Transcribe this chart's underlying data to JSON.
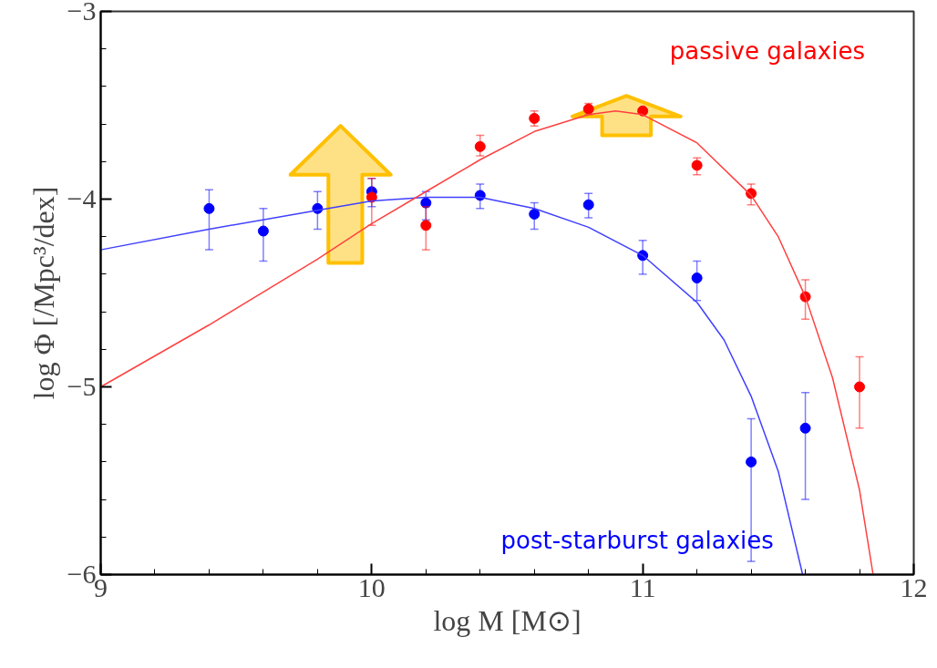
{
  "chart_data": {
    "type": "scatter",
    "xlabel": "log M [M⊙]",
    "ylabel": "log Φ [/Mpc³/dex]",
    "xlim": [
      9,
      12
    ],
    "ylim": [
      -6,
      -3
    ],
    "xticks": [
      9,
      10,
      11,
      12
    ],
    "yticks": [
      {
        "value": -6,
        "label": "−6"
      },
      {
        "value": -5,
        "label": "−5"
      },
      {
        "value": -4,
        "label": "−4"
      },
      {
        "value": -3,
        "label": "−3"
      }
    ],
    "marker": "circle",
    "grid": false,
    "series": [
      {
        "name": "post-starburst galaxies",
        "color": "#0000ff",
        "x": [
          9.4,
          9.6,
          9.8,
          10.0,
          10.2,
          10.4,
          10.6,
          10.8,
          11.0,
          11.2,
          11.4,
          11.6
        ],
        "values": [
          -4.05,
          -4.17,
          -4.05,
          -3.96,
          -4.02,
          -3.98,
          -4.08,
          -4.03,
          -4.3,
          -4.42,
          -5.4,
          -5.22
        ],
        "errors": [
          [
            -4.27,
            -3.95
          ],
          [
            -4.33,
            -4.05
          ],
          [
            -4.16,
            -3.96
          ],
          [
            -4.04,
            -3.89
          ],
          [
            -4.11,
            -3.96
          ],
          [
            -4.05,
            -3.92
          ],
          [
            -4.16,
            -4.02
          ],
          [
            -4.1,
            -3.97
          ],
          [
            -4.4,
            -4.22
          ],
          [
            -4.54,
            -4.33
          ],
          [
            -5.93,
            -5.17
          ],
          [
            -5.6,
            -5.03
          ]
        ]
      },
      {
        "name": "passive galaxies",
        "color": "#ff0000",
        "x": [
          10.0,
          10.2,
          10.4,
          10.6,
          10.8,
          11.0,
          11.2,
          11.4,
          11.6,
          11.8
        ],
        "values": [
          -3.99,
          -4.14,
          -3.72,
          -3.57,
          -3.52,
          -3.53,
          -3.82,
          -3.97,
          -4.52,
          -5.0
        ],
        "errors": [
          [
            -4.14,
            -3.89
          ],
          [
            -4.27,
            -4.04
          ],
          [
            -3.77,
            -3.66
          ],
          [
            -3.61,
            -3.53
          ],
          [
            -3.55,
            -3.49
          ],
          null,
          [
            -3.87,
            -3.78
          ],
          [
            -4.03,
            -3.92
          ],
          [
            -4.64,
            -4.43
          ],
          [
            -5.22,
            -4.84
          ]
        ]
      },
      {
        "type": "line",
        "marker": "none",
        "color": "#4040ff",
        "x": [
          9.0,
          9.4,
          9.8,
          10.0,
          10.2,
          10.4,
          10.6,
          10.8,
          11.0,
          11.2,
          11.3,
          11.4,
          11.5,
          11.59
        ],
        "values": [
          -4.27,
          -4.16,
          -4.06,
          -4.01,
          -3.99,
          -3.99,
          -4.05,
          -4.15,
          -4.3,
          -4.55,
          -4.75,
          -5.05,
          -5.45,
          -6.0
        ]
      },
      {
        "type": "line",
        "marker": "none",
        "color": "#ff4040",
        "x": [
          9.0,
          9.4,
          9.8,
          10.0,
          10.2,
          10.4,
          10.6,
          10.8,
          10.9,
          11.0,
          11.2,
          11.4,
          11.5,
          11.6,
          11.7,
          11.8,
          11.85
        ],
        "values": [
          -5.0,
          -4.67,
          -4.32,
          -4.13,
          -3.96,
          -3.79,
          -3.64,
          -3.55,
          -3.53,
          -3.55,
          -3.7,
          -3.98,
          -4.2,
          -4.52,
          -4.95,
          -5.55,
          -6.0
        ]
      }
    ]
  }
}
